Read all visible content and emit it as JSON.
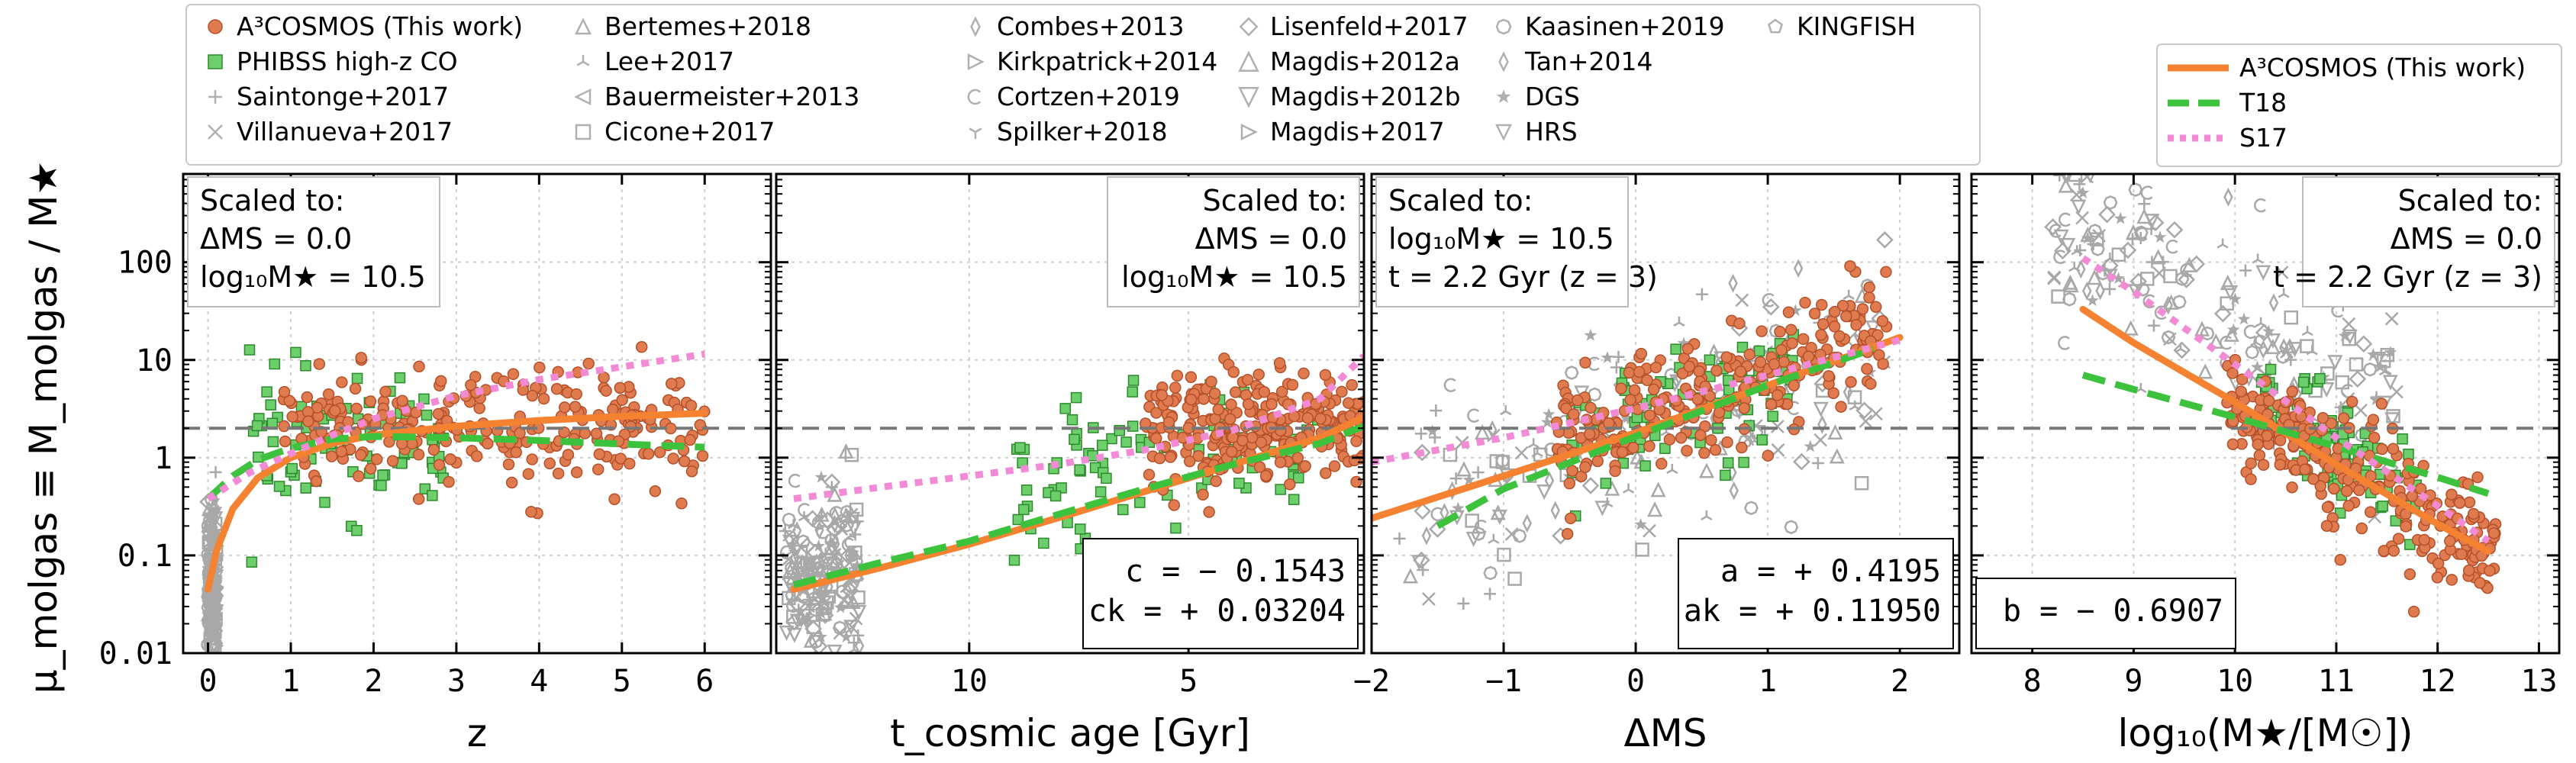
{
  "figure": {
    "ylabel": "μ_molgas ≡ M_molgas / M★",
    "hline_y": 2.0,
    "panels_shown": 4
  },
  "legend_points": [
    {
      "label": "A³COSMOS (This work)",
      "marker": "circle-filled",
      "color": "#e07b4f"
    },
    {
      "label": "PHIBSS high-z CO",
      "marker": "square-filled",
      "color": "#3cb043"
    },
    {
      "label": "Saintonge+2017",
      "marker": "plus",
      "color": "#b0b0b0"
    },
    {
      "label": "Villanueva+2017",
      "marker": "x",
      "color": "#b0b0b0"
    },
    {
      "label": "Bertemes+2018",
      "marker": "triangle-up",
      "color": "#b0b0b0"
    },
    {
      "label": "Lee+2017",
      "marker": "tri-up",
      "color": "#b0b0b0"
    },
    {
      "label": "Bauermeister+2013",
      "marker": "triangle-left",
      "color": "#b0b0b0"
    },
    {
      "label": "Cicone+2017",
      "marker": "square",
      "color": "#b0b0b0"
    },
    {
      "label": "Combes+2013",
      "marker": "thin-diamond",
      "color": "#b0b0b0"
    },
    {
      "label": "Kirkpatrick+2014",
      "marker": "triangle-right",
      "color": "#b0b0b0"
    },
    {
      "label": "Cortzen+2019",
      "marker": "c",
      "color": "#b0b0b0"
    },
    {
      "label": "Spilker+2018",
      "marker": "tri-down",
      "color": "#b0b0b0"
    },
    {
      "label": "Lisenfeld+2017",
      "marker": "diamond",
      "color": "#b0b0b0"
    },
    {
      "label": "Magdis+2012a",
      "marker": "triangle-up-big",
      "color": "#b0b0b0"
    },
    {
      "label": "Magdis+2012b",
      "marker": "triangle-down-big",
      "color": "#b0b0b0"
    },
    {
      "label": "Magdis+2017",
      "marker": "triangle-right",
      "color": "#b0b0b0"
    },
    {
      "label": "Kaasinen+2019",
      "marker": "octagon",
      "color": "#b0b0b0"
    },
    {
      "label": "Tan+2014",
      "marker": "thin-diamond",
      "color": "#b0b0b0"
    },
    {
      "label": "DGS",
      "marker": "star",
      "color": "#b0b0b0"
    },
    {
      "label": "HRS",
      "marker": "triangle-down",
      "color": "#b0b0b0"
    },
    {
      "label": "KINGFISH",
      "marker": "pentagon",
      "color": "#b0b0b0"
    }
  ],
  "legend_lines": [
    {
      "label": "A³COSMOS (This work)",
      "style": "solid",
      "color": "#f58231"
    },
    {
      "label": "T18",
      "style": "dash",
      "color": "#3dc23d"
    },
    {
      "label": "S17",
      "style": "dot",
      "color": "#f28ad6"
    }
  ],
  "chart_data": [
    {
      "type": "scatter",
      "panel": "a",
      "xlabel": "z",
      "xlim": [
        -0.3,
        6.8
      ],
      "ylim": [
        0.01,
        800
      ],
      "yscale": "log",
      "xticks": [
        0,
        1,
        2,
        3,
        4,
        5,
        6
      ],
      "yticks": [
        0.01,
        0.1,
        1,
        10,
        100
      ],
      "yticklabels": [
        "0.01",
        "0.1",
        "1",
        "10",
        "100"
      ],
      "grid": true,
      "annotation": {
        "position": "top-left",
        "lines": [
          "Scaled to:",
          "ΔMS = 0.0",
          "log₁₀M★ = 10.5"
        ]
      },
      "series": [
        {
          "name": "A³COSMOS (This work)",
          "style": "solid",
          "x": [
            0.0,
            0.1,
            0.3,
            0.6,
            1.0,
            1.5,
            2.0,
            3.0,
            4.0,
            5.0,
            6.0
          ],
          "y": [
            0.045,
            0.11,
            0.3,
            0.62,
            1.0,
            1.4,
            1.7,
            2.1,
            2.4,
            2.65,
            2.85
          ]
        },
        {
          "name": "T18",
          "style": "dash",
          "x": [
            0.0,
            0.3,
            0.6,
            1.0,
            1.5,
            2.0,
            3.0,
            4.0,
            5.0,
            6.0
          ],
          "y": [
            0.38,
            0.65,
            0.95,
            1.25,
            1.55,
            1.65,
            1.6,
            1.5,
            1.38,
            1.28
          ]
        },
        {
          "name": "S17",
          "style": "dot",
          "x": [
            0.0,
            0.5,
            1.0,
            1.5,
            2.0,
            3.0,
            4.0,
            5.0,
            6.0
          ],
          "y": [
            0.38,
            0.7,
            1.1,
            1.7,
            2.5,
            4.3,
            6.3,
            8.5,
            11.5
          ]
        }
      ],
      "scatter_clouds": [
        {
          "name": "A³COSMOS (This work)",
          "xrange": [
            0.9,
            6.0
          ],
          "ycenter_log": 0.3,
          "yspread": 0.3,
          "count": 260
        },
        {
          "name": "PHIBSS high-z CO",
          "xrange": [
            0.5,
            3.0
          ],
          "ycenter_log": 0.15,
          "yspread": 0.35,
          "count": 90
        },
        {
          "name": "local",
          "xrange": [
            0.0,
            0.1
          ],
          "ycenter_log": -1.3,
          "yspread": 0.4,
          "count": 200
        }
      ]
    },
    {
      "type": "scatter",
      "panel": "b",
      "xlabel": "t_cosmic age [Gyr]",
      "xlim": [
        14.4,
        1.0
      ],
      "ylim": [
        0.01,
        800
      ],
      "yscale": "log",
      "xticks": [
        10,
        5
      ],
      "grid": true,
      "annotation": {
        "position": "top-right",
        "lines": [
          "Scaled to:",
          "ΔMS = 0.0",
          "log₁₀M★ = 10.5"
        ]
      },
      "fit_box": {
        "position": "bottom-right",
        "lines": [
          "c = − 0.1543",
          "ck = + 0.03204"
        ]
      },
      "series": [
        {
          "name": "A³COSMOS (This work)",
          "style": "solid",
          "x": [
            14.0,
            12.0,
            10.0,
            8.0,
            6.0,
            4.0,
            2.0,
            1.0
          ],
          "y": [
            0.045,
            0.075,
            0.13,
            0.24,
            0.45,
            0.85,
            1.6,
            2.6
          ]
        },
        {
          "name": "T18",
          "style": "dash",
          "x": [
            14.0,
            12.0,
            10.0,
            8.0,
            6.0,
            4.0,
            2.0,
            1.0
          ],
          "y": [
            0.05,
            0.085,
            0.14,
            0.26,
            0.48,
            0.85,
            1.4,
            2.1
          ]
        },
        {
          "name": "S17",
          "style": "dot",
          "x": [
            14.0,
            12.0,
            10.0,
            8.0,
            6.0,
            4.0,
            2.0,
            1.0
          ],
          "y": [
            0.38,
            0.5,
            0.65,
            0.85,
            1.2,
            1.9,
            4.0,
            11.0
          ]
        }
      ],
      "scatter_clouds": [
        {
          "name": "A³COSMOS (This work)",
          "xrange": [
            1.0,
            6.0
          ],
          "ycenter_log": 0.3,
          "yspread": 0.3,
          "count": 260
        },
        {
          "name": "PHIBSS high-z CO",
          "xrange": [
            2.0,
            9.0
          ],
          "ycenter_log": 0.0,
          "yspread": 0.35,
          "count": 90
        },
        {
          "name": "local",
          "xrange": [
            12.5,
            14.2
          ],
          "ycenter_log": -1.2,
          "yspread": 0.4,
          "count": 200
        }
      ]
    },
    {
      "type": "scatter",
      "panel": "c",
      "xlabel": "ΔMS",
      "xlim": [
        -2.0,
        2.45
      ],
      "ylim": [
        0.01,
        800
      ],
      "yscale": "log",
      "xticks": [
        -2,
        -1,
        0,
        1,
        2
      ],
      "grid": true,
      "annotation": {
        "position": "top-left",
        "lines": [
          "Scaled to:",
          "log₁₀M★ = 10.5",
          "t = 2.2 Gyr (z = 3)"
        ]
      },
      "fit_box": {
        "position": "bottom-right",
        "lines": [
          "a = + 0.4195",
          "ak = + 0.11950"
        ]
      },
      "series": [
        {
          "name": "A³COSMOS (This work)",
          "style": "solid",
          "x": [
            -2.0,
            -1.0,
            0.0,
            1.0,
            2.0
          ],
          "y": [
            0.24,
            0.65,
            1.8,
            5.5,
            17.0
          ]
        },
        {
          "name": "T18",
          "style": "dash",
          "x": [
            -1.5,
            -1.0,
            0.0,
            1.0,
            1.8
          ],
          "y": [
            0.2,
            0.48,
            1.65,
            5.5,
            13.0
          ]
        },
        {
          "name": "S17",
          "style": "dot",
          "x": [
            -2.0,
            -1.0,
            0.0,
            1.0,
            2.0
          ],
          "y": [
            0.9,
            1.6,
            3.2,
            7.0,
            16.0
          ]
        }
      ],
      "scatter_clouds": [
        {
          "name": "A³COSMOS (This work)",
          "xrange": [
            -0.6,
            1.9
          ],
          "ycenter_log": 0.45,
          "yspread": 0.3,
          "count": 260
        },
        {
          "name": "PHIBSS high-z CO",
          "xrange": [
            -0.5,
            1.2
          ],
          "ycenter_log": 0.3,
          "yspread": 0.3,
          "count": 90
        },
        {
          "name": "local",
          "xrange": [
            -1.8,
            1.9
          ],
          "ycenter_log": 0.2,
          "yspread": 0.55,
          "count": 200
        }
      ]
    },
    {
      "type": "scatter",
      "panel": "d",
      "xlabel": "log₁₀(M★/[M☉])",
      "xlim": [
        7.4,
        13.2
      ],
      "ylim": [
        0.01,
        800
      ],
      "yscale": "log",
      "xticks": [
        8,
        9,
        10,
        11,
        12,
        13
      ],
      "grid": true,
      "annotation": {
        "position": "top-right",
        "lines": [
          "Scaled to:",
          "ΔMS = 0.0",
          "t = 2.2 Gyr (z = 3)"
        ]
      },
      "fit_box": {
        "position": "bottom-left",
        "lines": [
          "b = − 0.6907"
        ]
      },
      "series": [
        {
          "name": "A³COSMOS (This work)",
          "style": "solid",
          "x": [
            8.5,
            9.0,
            10.0,
            11.0,
            12.0,
            12.5
          ],
          "y": [
            33.0,
            15.0,
            3.7,
            0.85,
            0.21,
            0.11
          ]
        },
        {
          "name": "T18",
          "style": "dash",
          "x": [
            8.5,
            9.0,
            10.0,
            11.0,
            12.0,
            12.5
          ],
          "y": [
            7.0,
            5.0,
            2.6,
            1.3,
            0.63,
            0.43
          ]
        },
        {
          "name": "S17",
          "style": "dot",
          "x": [
            8.5,
            9.0,
            10.0,
            11.0,
            12.0,
            12.5
          ],
          "y": [
            110.0,
            50.0,
            9.0,
            1.6,
            0.32,
            0.14
          ]
        }
      ],
      "scatter_clouds": [
        {
          "name": "A³COSMOS (This work)",
          "xrange": [
            9.9,
            12.6
          ],
          "ycenter_log": 0.0,
          "yspread": 0.3,
          "count": 260
        },
        {
          "name": "PHIBSS high-z CO",
          "xrange": [
            10.2,
            11.8
          ],
          "ycenter_log": 0.2,
          "yspread": 0.3,
          "count": 90
        },
        {
          "name": "local",
          "xrange": [
            8.2,
            11.6
          ],
          "ycenter_log": 0.9,
          "yspread": 0.5,
          "count": 200
        }
      ]
    }
  ]
}
